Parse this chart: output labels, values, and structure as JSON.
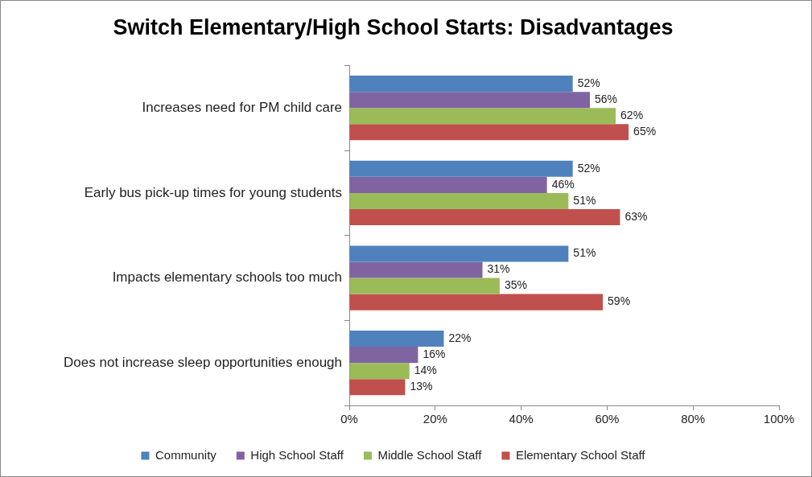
{
  "chart_data": {
    "type": "bar",
    "orientation": "horizontal",
    "title": "Switch Elementary/High School Starts: Disadvantages",
    "categories": [
      "Increases need for PM child care",
      "Early bus pick-up times for young students",
      "Impacts elementary schools too much",
      "Does not increase sleep opportunities enough"
    ],
    "series": [
      {
        "name": "Community",
        "color": "#4f81bd",
        "values": [
          52,
          52,
          51,
          22
        ],
        "value_labels": [
          "52%",
          "52%",
          "51%",
          "22%"
        ]
      },
      {
        "name": "High School Staff",
        "color": "#8064a2",
        "values": [
          56,
          46,
          31,
          16
        ],
        "value_labels": [
          "56%",
          "46%",
          "31%",
          "16%"
        ]
      },
      {
        "name": "Middle School Staff",
        "color": "#9bbb59",
        "values": [
          62,
          51,
          35,
          14
        ],
        "value_labels": [
          "62%",
          "51%",
          "35%",
          "14%"
        ]
      },
      {
        "name": "Elementary School Staff",
        "color": "#c0504d",
        "values": [
          65,
          63,
          59,
          13
        ],
        "value_labels": [
          "65%",
          "63%",
          "59%",
          "13%"
        ]
      }
    ],
    "xlim": [
      0,
      100
    ],
    "xticks": [
      {
        "value": 0,
        "label": "0%"
      },
      {
        "value": 20,
        "label": "20%"
      },
      {
        "value": 40,
        "label": "40%"
      },
      {
        "value": 60,
        "label": "60%"
      },
      {
        "value": 80,
        "label": "80%"
      },
      {
        "value": 100,
        "label": "100%"
      }
    ],
    "grid": false,
    "legend": "bottom"
  }
}
